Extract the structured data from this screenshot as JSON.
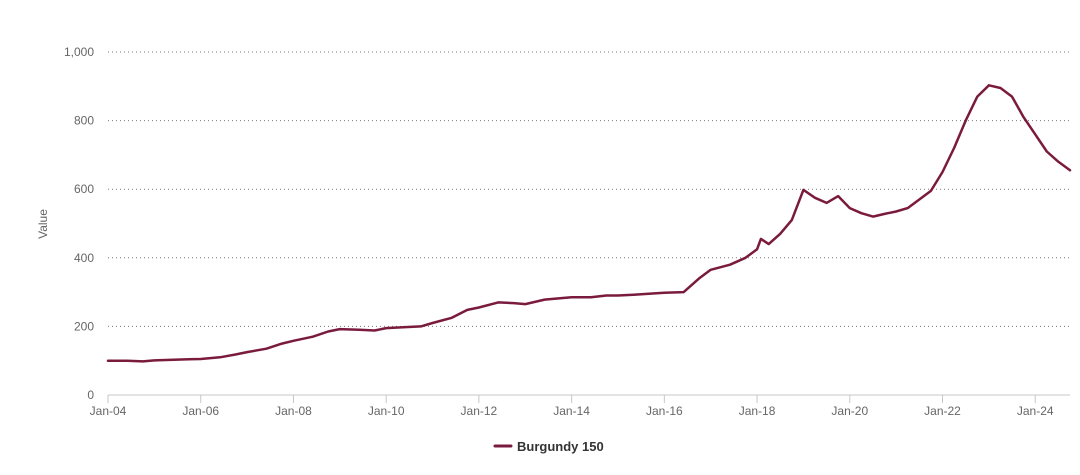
{
  "chart_data": {
    "type": "line",
    "title": "",
    "xlabel": "",
    "ylabel": "Value",
    "ylim": [
      0,
      1000
    ],
    "y_ticks": [
      "0",
      "200",
      "400",
      "600",
      "800",
      "1,000"
    ],
    "y_tick_values": [
      0,
      200,
      400,
      600,
      800,
      1000
    ],
    "x_ticks": [
      "Jan-04",
      "Jan-06",
      "Jan-08",
      "Jan-10",
      "Jan-12",
      "Jan-14",
      "Jan-16",
      "Jan-18",
      "Jan-20",
      "Jan-22",
      "Jan-24"
    ],
    "x_tick_values": [
      "2004-01",
      "2006-01",
      "2008-01",
      "2010-01",
      "2012-01",
      "2014-01",
      "2016-01",
      "2018-01",
      "2020-01",
      "2022-01",
      "2024-01"
    ],
    "xlim": [
      "2004-01",
      "2024-10"
    ],
    "grid": "horizontal dotted",
    "legend_position": "bottom-center",
    "series": [
      {
        "name": "Burgundy 150",
        "color": "#7a1b3d",
        "points": [
          [
            "2004-01",
            100
          ],
          [
            "2004-06",
            100
          ],
          [
            "2004-10",
            98
          ],
          [
            "2005-01",
            101
          ],
          [
            "2005-06",
            103
          ],
          [
            "2005-10",
            104
          ],
          [
            "2006-01",
            105
          ],
          [
            "2006-06",
            110
          ],
          [
            "2006-10",
            118
          ],
          [
            "2007-01",
            125
          ],
          [
            "2007-06",
            135
          ],
          [
            "2007-10",
            150
          ],
          [
            "2008-01",
            158
          ],
          [
            "2008-06",
            170
          ],
          [
            "2008-10",
            185
          ],
          [
            "2009-01",
            192
          ],
          [
            "2009-06",
            190
          ],
          [
            "2009-10",
            188
          ],
          [
            "2010-01",
            195
          ],
          [
            "2010-06",
            198
          ],
          [
            "2010-10",
            200
          ],
          [
            "2011-01",
            210
          ],
          [
            "2011-06",
            225
          ],
          [
            "2011-10",
            248
          ],
          [
            "2012-01",
            255
          ],
          [
            "2012-06",
            270
          ],
          [
            "2012-10",
            268
          ],
          [
            "2013-01",
            265
          ],
          [
            "2013-06",
            278
          ],
          [
            "2013-10",
            282
          ],
          [
            "2014-01",
            285
          ],
          [
            "2014-06",
            285
          ],
          [
            "2014-10",
            290
          ],
          [
            "2015-01",
            290
          ],
          [
            "2015-06",
            293
          ],
          [
            "2015-10",
            296
          ],
          [
            "2016-01",
            298
          ],
          [
            "2016-06",
            300
          ],
          [
            "2016-10",
            340
          ],
          [
            "2017-01",
            365
          ],
          [
            "2017-06",
            380
          ],
          [
            "2017-10",
            400
          ],
          [
            "2018-01",
            425
          ],
          [
            "2018-02",
            455
          ],
          [
            "2018-04",
            440
          ],
          [
            "2018-07",
            470
          ],
          [
            "2018-10",
            510
          ],
          [
            "2019-01",
            598
          ],
          [
            "2019-04",
            575
          ],
          [
            "2019-07",
            560
          ],
          [
            "2019-10",
            580
          ],
          [
            "2020-01",
            545
          ],
          [
            "2020-04",
            530
          ],
          [
            "2020-07",
            520
          ],
          [
            "2020-10",
            528
          ],
          [
            "2021-01",
            535
          ],
          [
            "2021-04",
            545
          ],
          [
            "2021-07",
            570
          ],
          [
            "2021-10",
            595
          ],
          [
            "2022-01",
            650
          ],
          [
            "2022-04",
            720
          ],
          [
            "2022-07",
            800
          ],
          [
            "2022-10",
            870
          ],
          [
            "2023-01",
            903
          ],
          [
            "2023-04",
            895
          ],
          [
            "2023-07",
            870
          ],
          [
            "2023-10",
            810
          ],
          [
            "2024-01",
            760
          ],
          [
            "2024-04",
            710
          ],
          [
            "2024-07",
            680
          ],
          [
            "2024-10",
            655
          ]
        ]
      }
    ]
  }
}
